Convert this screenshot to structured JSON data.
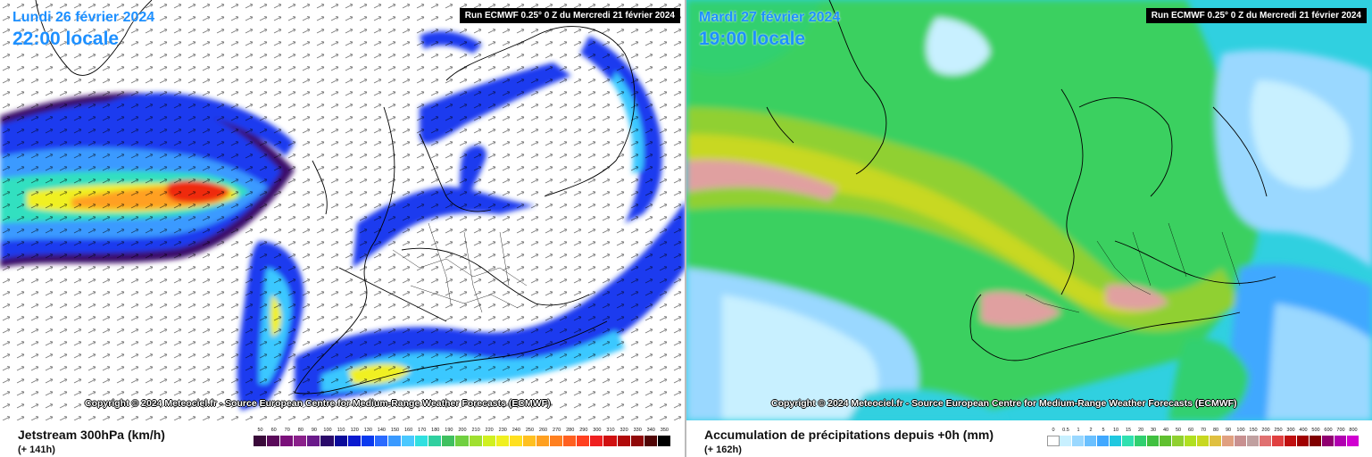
{
  "left": {
    "date_label": "Lundi 26 février 2024",
    "time_label": "22:00 locale",
    "run_label": "Run ECMWF 0.25° 0 Z du Mercredi 21 février 2024",
    "copyright": "Copyright © 2024 Meteociel.fr - Source European Centre for Medium-Range Weather Forecasts (ECMWF)",
    "legend_title": "Jetstream 300hPa (km/h)",
    "step_label": "(+ 141h)",
    "scale_labels": [
      "50",
      "60",
      "70",
      "80",
      "90",
      "100",
      "110",
      "120",
      "130",
      "140",
      "150",
      "160",
      "170",
      "180",
      "190",
      "200",
      "210",
      "220",
      "230",
      "240",
      "250",
      "260",
      "270",
      "280",
      "290",
      "300",
      "310",
      "320",
      "330",
      "340",
      "350"
    ],
    "scale_colors": [
      "#3a0a3a",
      "#5a0a5a",
      "#7a107a",
      "#8a208a",
      "#6a1a8a",
      "#2a0a6a",
      "#0a0a9a",
      "#0a1ad0",
      "#0a3aef",
      "#2a6aff",
      "#3a9aff",
      "#4ac8ff",
      "#30e0e0",
      "#30d0a0",
      "#40c060",
      "#70d040",
      "#a0e030",
      "#d0f020",
      "#f0f020",
      "#ffe020",
      "#ffc020",
      "#ffa020",
      "#ff8020",
      "#ff6020",
      "#ff4020",
      "#ef2020",
      "#d01010",
      "#b00a0a",
      "#900808",
      "#500505",
      "#000000"
    ],
    "colors": {
      "jet_blue": "#1a3aef",
      "jet_cyan": "#3ac8ff",
      "jet_yellow": "#f0f020",
      "jet_red": "#ef2a10",
      "text_blue": "#1e90ff"
    }
  },
  "right": {
    "date_label": "Mardi 27 février 2024",
    "time_label": "19:00 locale",
    "run_label": "Run ECMWF 0.25° 0 Z du Mercredi 21 février 2024",
    "copyright": "Copyright © 2024 Meteociel.fr - Source European Centre for Medium-Range Weather Forecasts (ECMWF)",
    "legend_title": "Accumulation de précipitations depuis +0h (mm)",
    "step_label": "(+ 162h)",
    "scale_labels": [
      "0",
      "0.5",
      "1",
      "2",
      "5",
      "10",
      "15",
      "20",
      "30",
      "40",
      "50",
      "60",
      "70",
      "80",
      "90",
      "100",
      "150",
      "200",
      "250",
      "300",
      "400",
      "500",
      "600",
      "700",
      "800"
    ],
    "scale_colors": [
      "#ffffff",
      "#c8f0ff",
      "#9ad8ff",
      "#6ac0ff",
      "#40a8ff",
      "#20c8e0",
      "#30e0b0",
      "#30d070",
      "#40c040",
      "#60c030",
      "#90d030",
      "#b0e020",
      "#c8d820",
      "#e0c040",
      "#e0a080",
      "#c89090",
      "#c0a0a0",
      "#e07070",
      "#e04040",
      "#c01010",
      "#a00000",
      "#800000",
      "#900070",
      "#b000b0",
      "#d000d0"
    ],
    "colors": {
      "precip_green": "#3ad060",
      "precip_lightblue": "#a0e0ff",
      "precip_cyan": "#30d0e0",
      "precip_pink": "#e0a0a0",
      "text_blue": "#1e90ff"
    }
  }
}
